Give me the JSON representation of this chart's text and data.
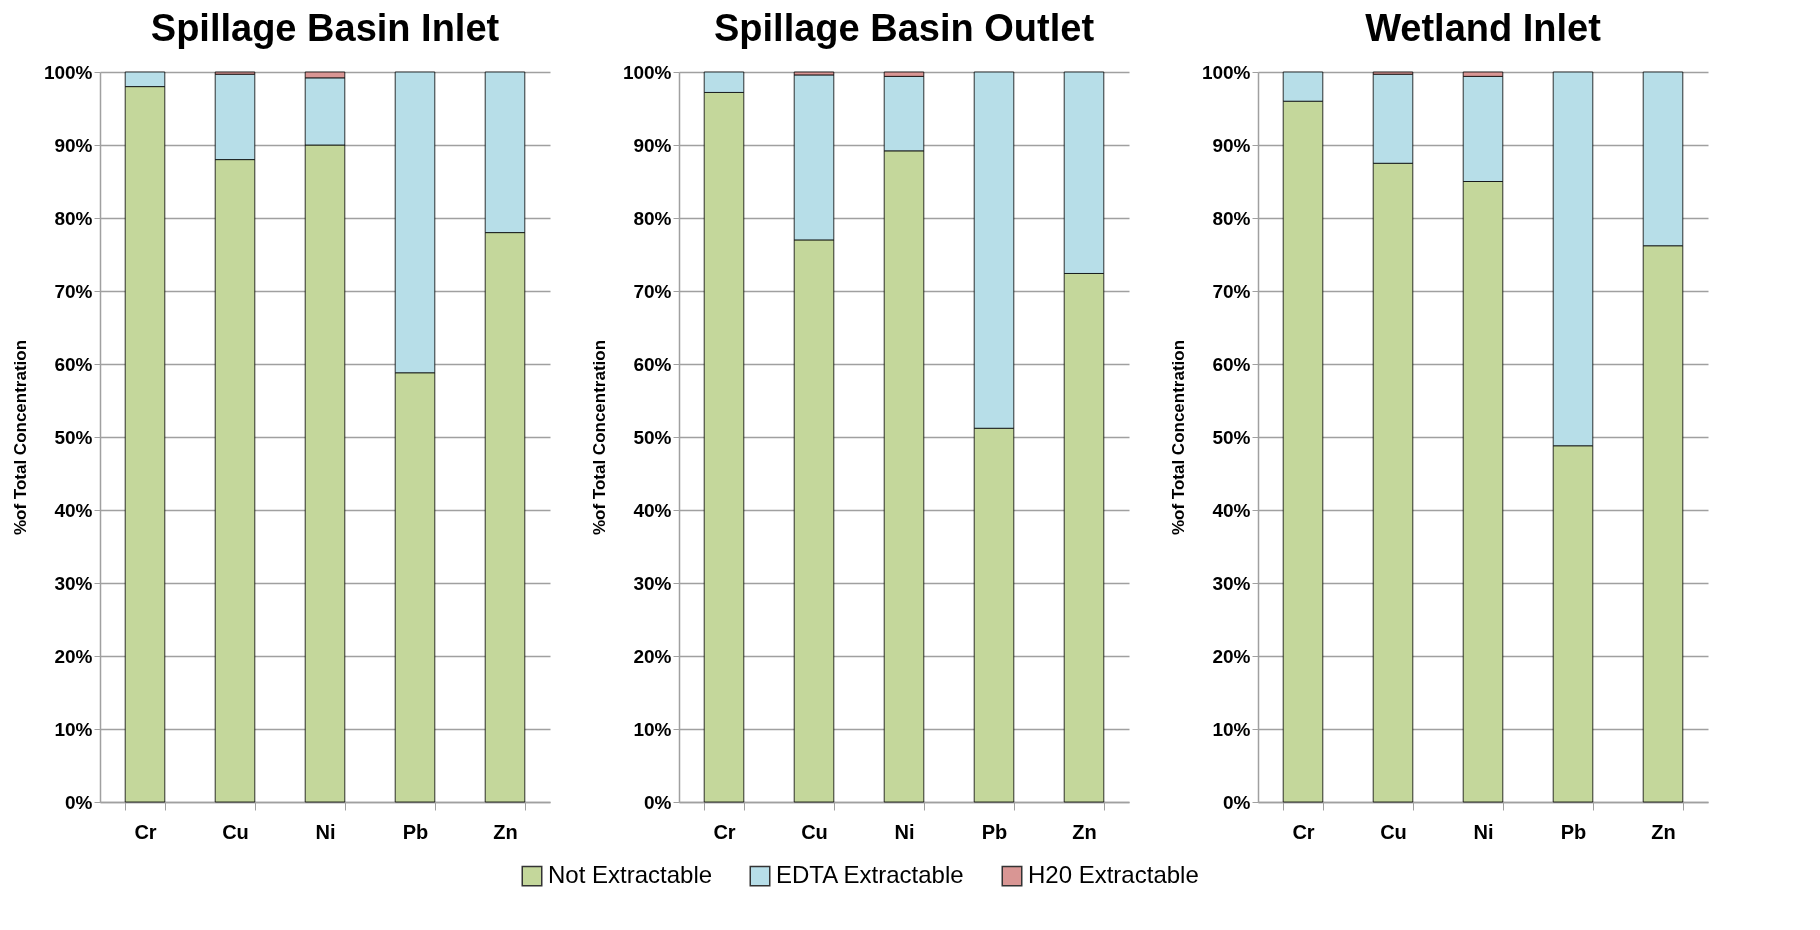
{
  "chart_data": [
    {
      "type": "bar",
      "stacked": true,
      "title": "Spillage Basin Inlet",
      "ylabel": "%of Total Concentration",
      "categories": [
        "Cr",
        "Cu",
        "Ni",
        "Pb",
        "Zn"
      ],
      "ylim": [
        0,
        100
      ],
      "yticks": [
        {
          "value": 0,
          "label": "0%"
        },
        {
          "value": 10,
          "label": "10%"
        },
        {
          "value": 20,
          "label": "20%"
        },
        {
          "value": 30,
          "label": "30%"
        },
        {
          "value": 40,
          "label": "40%"
        },
        {
          "value": 50,
          "label": "50%"
        },
        {
          "value": 60,
          "label": "60%"
        },
        {
          "value": 70,
          "label": "70%"
        },
        {
          "value": 80,
          "label": "80%"
        },
        {
          "value": 90,
          "label": "90%"
        },
        {
          "value": 100,
          "label": "100%"
        }
      ],
      "grid": "y",
      "legend": "bottom",
      "series": [
        {
          "name": "Not Extractable",
          "color": "#c4d79b",
          "values": [
            98,
            88,
            90,
            58.8,
            78
          ]
        },
        {
          "name": "EDTA Extractable",
          "color": "#b7dee8",
          "values": [
            2,
            11.7,
            9.2,
            41.2,
            22
          ]
        },
        {
          "name": "H20 Extractable",
          "color": "#d99694",
          "values": [
            null,
            0.3,
            0.8,
            null,
            null
          ]
        }
      ]
    },
    {
      "type": "bar",
      "stacked": true,
      "title": "Spillage Basin Outlet",
      "ylabel": "%of Total Concentration",
      "categories": [
        "Cr",
        "Cu",
        "Ni",
        "Pb",
        "Zn"
      ],
      "ylim": [
        0,
        100
      ],
      "yticks": [
        {
          "value": 0,
          "label": "0%"
        },
        {
          "value": 10,
          "label": "10%"
        },
        {
          "value": 20,
          "label": "20%"
        },
        {
          "value": 30,
          "label": "30%"
        },
        {
          "value": 40,
          "label": "40%"
        },
        {
          "value": 50,
          "label": "50%"
        },
        {
          "value": 60,
          "label": "60%"
        },
        {
          "value": 70,
          "label": "70%"
        },
        {
          "value": 80,
          "label": "80%"
        },
        {
          "value": 90,
          "label": "90%"
        },
        {
          "value": 100,
          "label": "100%"
        }
      ],
      "grid": "y",
      "legend": "bottom",
      "series": [
        {
          "name": "Not Extractable",
          "color": "#c4d79b",
          "values": [
            97.2,
            77,
            89.2,
            51.2,
            72.4
          ]
        },
        {
          "name": "EDTA Extractable",
          "color": "#b7dee8",
          "values": [
            2.8,
            22.6,
            10.2,
            48.8,
            27.6
          ]
        },
        {
          "name": "H20 Extractable",
          "color": "#d99694",
          "values": [
            null,
            0.4,
            0.6,
            null,
            null
          ]
        }
      ]
    },
    {
      "type": "bar",
      "stacked": true,
      "title": "Wetland Inlet",
      "ylabel": "%of Total Concentration",
      "categories": [
        "Cr",
        "Cu",
        "Ni",
        "Pb",
        "Zn"
      ],
      "ylim": [
        0,
        100
      ],
      "yticks": [
        {
          "value": 0,
          "label": "0%"
        },
        {
          "value": 10,
          "label": "10%"
        },
        {
          "value": 20,
          "label": "20%"
        },
        {
          "value": 30,
          "label": "30%"
        },
        {
          "value": 40,
          "label": "40%"
        },
        {
          "value": 50,
          "label": "50%"
        },
        {
          "value": 60,
          "label": "60%"
        },
        {
          "value": 70,
          "label": "70%"
        },
        {
          "value": 80,
          "label": "80%"
        },
        {
          "value": 90,
          "label": "90%"
        },
        {
          "value": 100,
          "label": "100%"
        }
      ],
      "grid": "y",
      "legend": "bottom",
      "series": [
        {
          "name": "Not Extractable",
          "color": "#c4d79b",
          "values": [
            96,
            87.5,
            85,
            48.8,
            76.2
          ]
        },
        {
          "name": "EDTA Extractable",
          "color": "#b7dee8",
          "values": [
            4,
            12.2,
            14.4,
            51.2,
            23.8
          ]
        },
        {
          "name": "H20 Extractable",
          "color": "#d99694",
          "values": [
            null,
            0.3,
            0.6,
            null,
            null
          ]
        }
      ]
    }
  ]
}
